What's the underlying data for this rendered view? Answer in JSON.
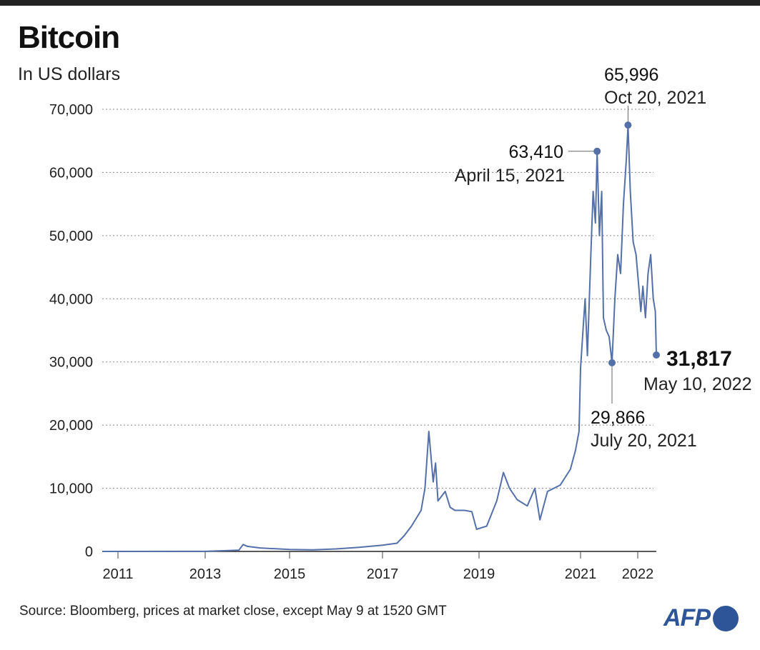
{
  "header": {
    "title": "Bitcoin",
    "subtitle": "In US dollars"
  },
  "footer": {
    "source": "Source: Bloomberg, prices at market close, except May 9 at 1520 GMT",
    "logo": "AFP"
  },
  "colors": {
    "line": "#5470a8",
    "grid": "#888888",
    "logo": "#2e5597"
  },
  "chart_data": {
    "type": "line",
    "title": "Bitcoin",
    "ylabel": "In US dollars",
    "xlabel": "",
    "ylim": [
      0,
      70000
    ],
    "xlim": [
      2010.6,
      2022.36
    ],
    "yticks": [
      {
        "v": 0,
        "label": "0"
      },
      {
        "v": 10000,
        "label": "10,000"
      },
      {
        "v": 20000,
        "label": "20,000"
      },
      {
        "v": 30000,
        "label": "30,000"
      },
      {
        "v": 40000,
        "label": "40,000"
      },
      {
        "v": 50000,
        "label": "50,000"
      },
      {
        "v": 60000,
        "label": "60,000"
      },
      {
        "v": 70000,
        "label": "70,000"
      }
    ],
    "xticks": [
      {
        "v": 2011,
        "label": "2011"
      },
      {
        "v": 2013,
        "label": "2013"
      },
      {
        "v": 2015,
        "label": "2015"
      },
      {
        "v": 2017,
        "label": "2017"
      },
      {
        "v": 2019,
        "label": "2019"
      },
      {
        "v": 2021,
        "label": "2021"
      },
      {
        "v": 2022,
        "label": "2022"
      }
    ],
    "grid": true,
    "series": [
      {
        "name": "Bitcoin price",
        "points": [
          [
            2010.6,
            0
          ],
          [
            2013.0,
            13
          ],
          [
            2013.8,
            200
          ],
          [
            2013.9,
            1100
          ],
          [
            2014.0,
            800
          ],
          [
            2014.3,
            550
          ],
          [
            2015.0,
            300
          ],
          [
            2015.5,
            250
          ],
          [
            2016.0,
            400
          ],
          [
            2016.5,
            650
          ],
          [
            2017.0,
            1000
          ],
          [
            2017.3,
            1300
          ],
          [
            2017.45,
            2500
          ],
          [
            2017.6,
            4000
          ],
          [
            2017.8,
            6500
          ],
          [
            2017.88,
            10000
          ],
          [
            2017.96,
            19000
          ],
          [
            2018.05,
            11000
          ],
          [
            2018.1,
            14000
          ],
          [
            2018.15,
            8000
          ],
          [
            2018.3,
            9500
          ],
          [
            2018.4,
            7000
          ],
          [
            2018.5,
            6500
          ],
          [
            2018.7,
            6500
          ],
          [
            2018.85,
            6300
          ],
          [
            2018.95,
            3500
          ],
          [
            2019.15,
            4000
          ],
          [
            2019.35,
            8000
          ],
          [
            2019.48,
            12500
          ],
          [
            2019.6,
            10000
          ],
          [
            2019.75,
            8200
          ],
          [
            2019.95,
            7200
          ],
          [
            2020.1,
            10000
          ],
          [
            2020.2,
            5000
          ],
          [
            2020.35,
            9500
          ],
          [
            2020.6,
            10500
          ],
          [
            2020.8,
            13000
          ],
          [
            2020.9,
            16000
          ],
          [
            2020.97,
            19000
          ],
          [
            2021.0,
            29000
          ],
          [
            2021.05,
            36000
          ],
          [
            2021.08,
            40000
          ],
          [
            2021.12,
            31000
          ],
          [
            2021.18,
            47000
          ],
          [
            2021.22,
            57000
          ],
          [
            2021.26,
            52000
          ],
          [
            2021.29,
            63350
          ],
          [
            2021.33,
            50000
          ],
          [
            2021.37,
            57000
          ],
          [
            2021.4,
            37000
          ],
          [
            2021.45,
            35000
          ],
          [
            2021.5,
            34000
          ],
          [
            2021.55,
            29870
          ],
          [
            2021.6,
            40000
          ],
          [
            2021.65,
            47000
          ],
          [
            2021.7,
            44000
          ],
          [
            2021.75,
            55000
          ],
          [
            2021.8,
            62000
          ],
          [
            2021.83,
            67500
          ],
          [
            2021.87,
            57000
          ],
          [
            2021.92,
            49000
          ],
          [
            2021.97,
            47000
          ],
          [
            2022.02,
            42000
          ],
          [
            2022.06,
            38000
          ],
          [
            2022.1,
            42000
          ],
          [
            2022.15,
            37000
          ],
          [
            2022.2,
            44000
          ],
          [
            2022.25,
            47000
          ],
          [
            2022.3,
            40000
          ],
          [
            2022.34,
            38000
          ],
          [
            2022.36,
            31100
          ]
        ]
      }
    ],
    "annotations": [
      {
        "value": "63,410",
        "date": "April 15, 2021",
        "x": 2021.29,
        "y": 63350
      },
      {
        "value": "65,996",
        "date": "Oct 20, 2021",
        "x": 2021.83,
        "y": 67500
      },
      {
        "value": "29,866",
        "date": "July 20, 2021",
        "x": 2021.55,
        "y": 29870
      },
      {
        "value": "31,817",
        "date": "May 10, 2022",
        "x": 2022.36,
        "y": 31100
      }
    ]
  }
}
